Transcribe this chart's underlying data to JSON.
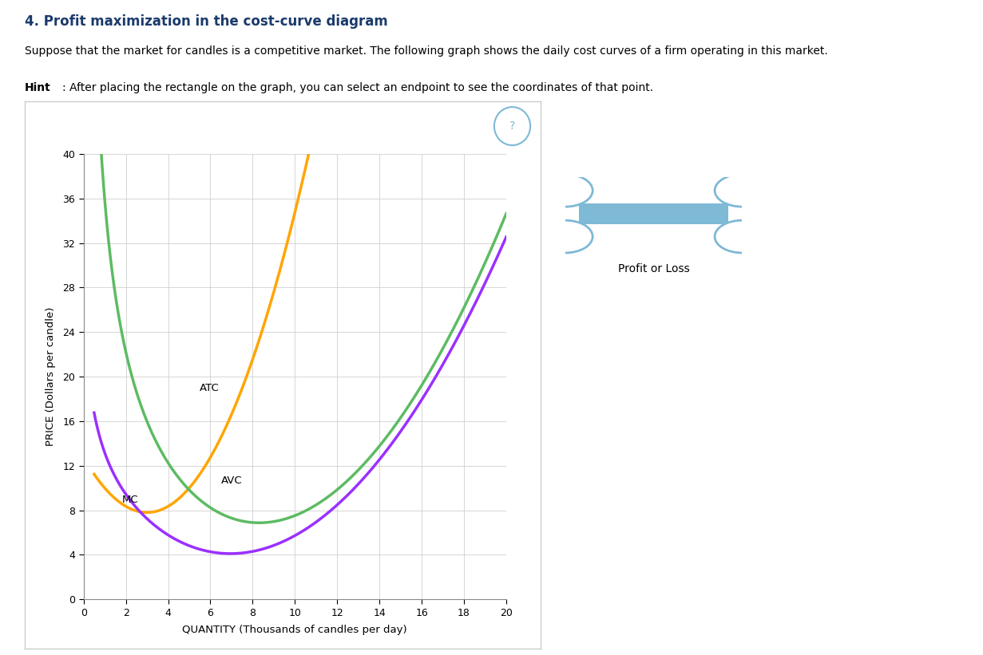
{
  "title": "4. Profit maximization in the cost-curve diagram",
  "subtitle1": "Suppose that the market for candles is a competitive market. The following graph shows the daily cost curves of a firm operating in this market.",
  "hint_bold": "Hint",
  "hint_rest": ": After placing the rectangle on the graph, you can select an endpoint to see the coordinates of that point.",
  "xlabel": "QUANTITY (Thousands of candles per day)",
  "ylabel": "PRICE (Dollars per candle)",
  "xlim": [
    0,
    20
  ],
  "ylim": [
    0,
    40
  ],
  "xticks": [
    0,
    2,
    4,
    6,
    8,
    10,
    12,
    14,
    16,
    18,
    20
  ],
  "yticks": [
    0,
    4,
    8,
    12,
    16,
    20,
    24,
    28,
    32,
    36,
    40
  ],
  "mc_color": "#FFA500",
  "atc_color": "#5DBB63",
  "avc_color": "#9B30FF",
  "legend_label": "Profit or Loss",
  "legend_icon_color": "#7EB9D6",
  "background_color": "#ffffff",
  "grid_color": "#cccccc",
  "title_color": "#1a3a6b",
  "panel_border_color": "#cccccc",
  "question_color": "#7EB9D6"
}
